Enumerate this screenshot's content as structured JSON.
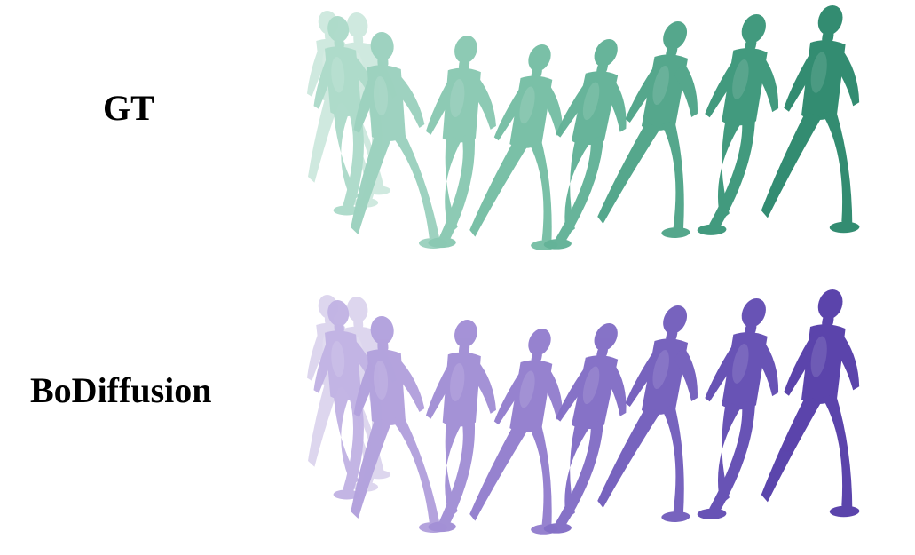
{
  "rows": [
    {
      "label": "GT",
      "colors": [
        "#cfe9df",
        "#bfe3d6",
        "#aedbca",
        "#9dd2bf",
        "#8bc9b3",
        "#78bfa6",
        "#64b398",
        "#52a68a",
        "#3f987c",
        "#2f8a6f"
      ]
    },
    {
      "label": "BoDiffusion",
      "colors": [
        "#ddd6ee",
        "#d0c6ea",
        "#c2b4e4",
        "#b3a2dd",
        "#a390d6",
        "#9480cf",
        "#8470c6",
        "#7560bd",
        "#6650b4",
        "#5841aa"
      ]
    }
  ],
  "figure_icon": "human-body-mesh-icon"
}
